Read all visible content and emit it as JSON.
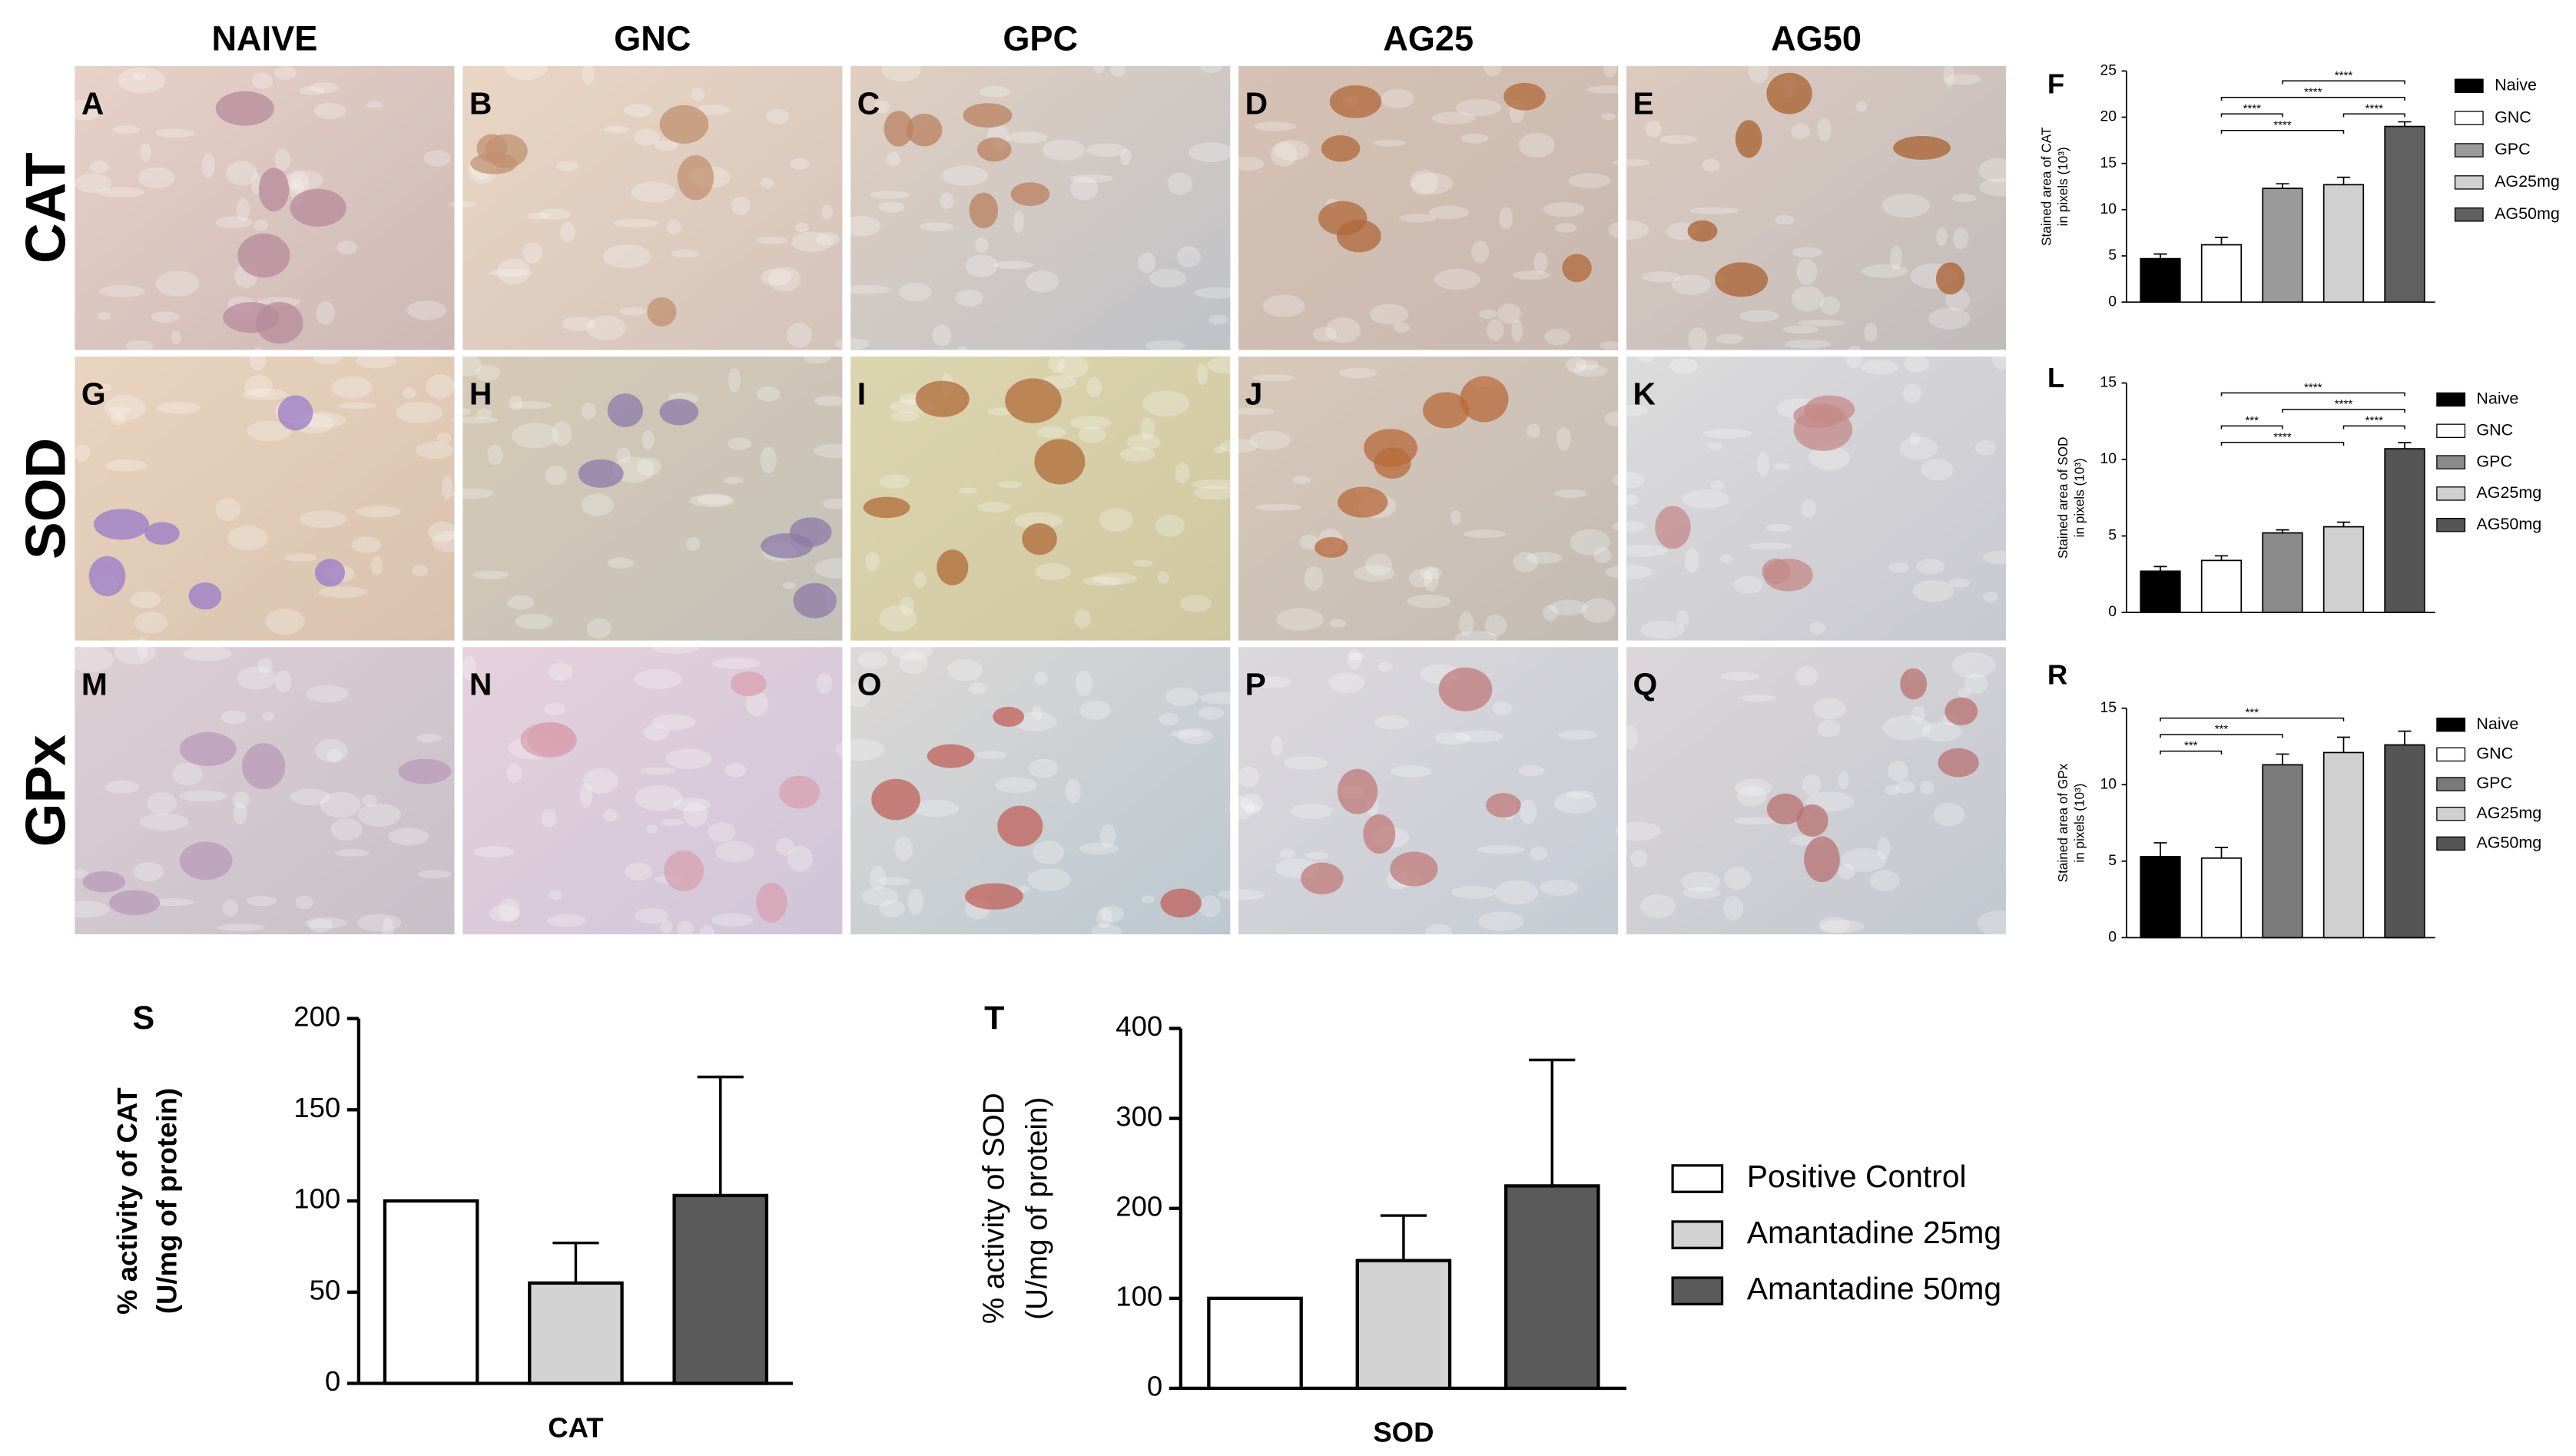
{
  "micrographs": {
    "columns": [
      "NAIVE",
      "GNC",
      "GPC",
      "AG25",
      "AG50"
    ],
    "rows": [
      "CAT",
      "SOD",
      "GPx"
    ],
    "letters": [
      [
        "A",
        "B",
        "C",
        "D",
        "E"
      ],
      [
        "G",
        "H",
        "I",
        "J",
        "K"
      ],
      [
        "M",
        "N",
        "O",
        "P",
        "Q"
      ]
    ]
  },
  "chart_data": [
    {
      "type": "bar",
      "panel": "F",
      "ylabel": [
        "Stained area of CAT",
        "in pixels (10³)"
      ],
      "categories": [
        "Naive",
        "GNC",
        "GPC",
        "AG25mg",
        "AG50mg"
      ],
      "values": [
        4.7,
        6.2,
        12.3,
        12.7,
        19
      ],
      "errors": [
        0.5,
        0.8,
        0.5,
        0.8,
        0.5
      ],
      "colors": [
        "#000000",
        "#ffffff",
        "#9a9a9a",
        "#d0d0d0",
        "#606060"
      ],
      "ylim": [
        0,
        25
      ],
      "yticks": [
        0,
        5,
        10,
        15,
        20,
        25
      ],
      "annotations": [
        {
          "text": "****",
          "from": "GNC",
          "to": "AG25mg"
        },
        {
          "text": "****",
          "from": "GNC",
          "to": "GPC"
        },
        {
          "text": "****",
          "from": "AG25mg",
          "to": "AG50mg"
        },
        {
          "text": "****",
          "from": "GNC",
          "to": "AG50mg"
        },
        {
          "text": "****",
          "from": "GPC",
          "to": "AG50mg"
        }
      ]
    },
    {
      "type": "bar",
      "panel": "L",
      "ylabel": [
        "Stained area of SOD",
        "in pixels (10³)"
      ],
      "categories": [
        "Naive",
        "GNC",
        "GPC",
        "AG25mg",
        "AG50mg"
      ],
      "values": [
        2.7,
        3.4,
        5.2,
        5.6,
        10.7
      ],
      "errors": [
        0.3,
        0.3,
        0.2,
        0.3,
        0.4
      ],
      "colors": [
        "#000000",
        "#ffffff",
        "#8a8a8a",
        "#d0d0d0",
        "#555555"
      ],
      "ylim": [
        0,
        15
      ],
      "yticks": [
        0,
        5,
        10,
        15
      ],
      "annotations": [
        {
          "text": "****",
          "from": "GNC",
          "to": "AG25mg"
        },
        {
          "text": "***",
          "from": "GNC",
          "to": "GPC"
        },
        {
          "text": "****",
          "from": "AG25mg",
          "to": "AG50mg"
        },
        {
          "text": "****",
          "from": "GPC",
          "to": "AG50mg"
        },
        {
          "text": "****",
          "from": "GNC",
          "to": "AG50mg"
        }
      ]
    },
    {
      "type": "bar",
      "panel": "R",
      "ylabel": [
        "Stained area of GPx",
        "in pixels (10³)"
      ],
      "categories": [
        "Naive",
        "GNC",
        "GPC",
        "AG25mg",
        "AG50mg"
      ],
      "values": [
        5.3,
        5.2,
        11.3,
        12.1,
        12.6
      ],
      "errors": [
        0.9,
        0.7,
        0.7,
        1.0,
        0.9
      ],
      "colors": [
        "#000000",
        "#ffffff",
        "#7a7a7a",
        "#d0d0d0",
        "#555555"
      ],
      "ylim": [
        0,
        15
      ],
      "yticks": [
        0,
        5,
        10,
        15
      ],
      "annotations": [
        {
          "text": "***",
          "from": "Naive",
          "to": "GNC"
        },
        {
          "text": "***",
          "from": "Naive",
          "to": "GPC"
        },
        {
          "text": "***",
          "from": "Naive",
          "to": "AG25mg"
        }
      ]
    },
    {
      "type": "grouped-bar",
      "panel": "S",
      "ylabel": [
        "% activity of CAT",
        "(U/mg of protein)"
      ],
      "categories": [
        "CAT"
      ],
      "series": [
        {
          "name": "Positive Control",
          "color": "#ffffff",
          "values": [
            100
          ]
        },
        {
          "name": "Amantadine 25mg",
          "color": "#d3d3d3",
          "values": [
            55
          ],
          "errors": [
            22
          ]
        },
        {
          "name": "Amantadine 50mg",
          "color": "#5a5a5a",
          "values": [
            103
          ],
          "errors": [
            65
          ]
        }
      ],
      "ylim": [
        0,
        200
      ],
      "yticks": [
        0,
        50,
        100,
        150,
        200
      ]
    },
    {
      "type": "grouped-bar",
      "panel": "T",
      "ylabel": [
        "% activity of SOD",
        "(U/mg of protein)"
      ],
      "categories": [
        "SOD"
      ],
      "series": [
        {
          "color": "#ffffff",
          "values": [
            100
          ]
        },
        {
          "color": "#d3d3d3",
          "values": [
            142
          ],
          "errors": [
            50
          ]
        },
        {
          "color": "#5a5a5a",
          "values": [
            225
          ],
          "errors": [
            140
          ]
        }
      ],
      "ylim": [
        0,
        400
      ],
      "yticks": [
        0,
        100,
        200,
        300,
        400
      ]
    }
  ]
}
